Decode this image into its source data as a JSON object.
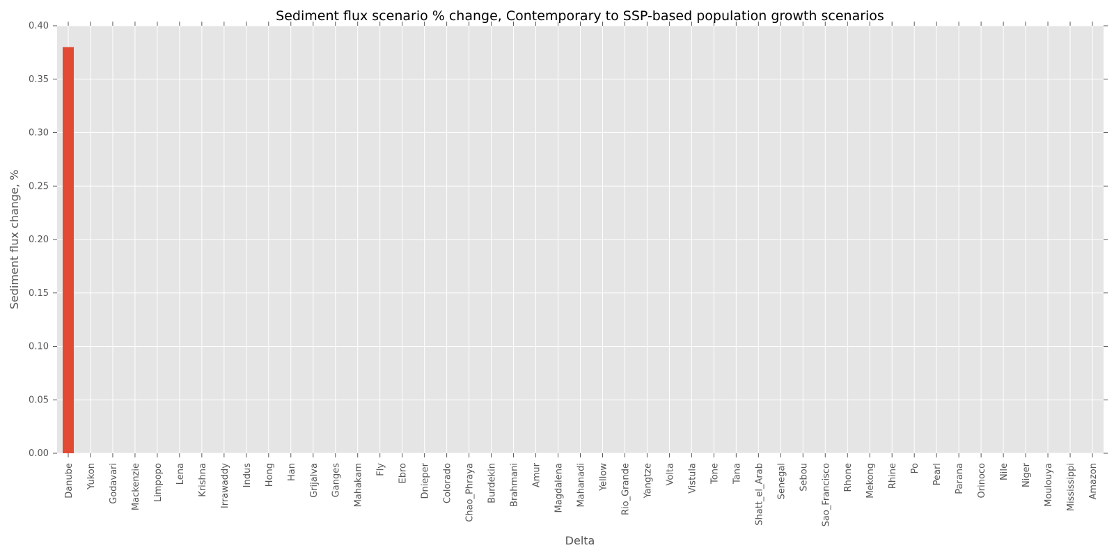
{
  "chart_data": {
    "type": "bar",
    "title": "Sediment flux scenario % change, Contemporary to SSP-based population growth scenarios",
    "xlabel": "Delta",
    "ylabel": "Sediment flux change, %",
    "ylim": [
      0,
      0.4
    ],
    "yticks": [
      0.0,
      0.05,
      0.1,
      0.15,
      0.2,
      0.25,
      0.3,
      0.35,
      0.4
    ],
    "ytick_labels": [
      "0.00",
      "0.05",
      "0.10",
      "0.15",
      "0.20",
      "0.25",
      "0.30",
      "0.35",
      "0.40"
    ],
    "grid": true,
    "categories": [
      "Danube",
      "Yukon",
      "Godavari",
      "Mackenzie",
      "Limpopo",
      "Lena",
      "Krishna",
      "Irrawaddy",
      "Indus",
      "Hong",
      "Han",
      "Grijalva",
      "Ganges",
      "Mahakam",
      "Fly",
      "Ebro",
      "Dnieper",
      "Colorado",
      "Chao_Phraya",
      "Burdekin",
      "Brahmani",
      "Amur",
      "Magdalena",
      "Mahanadi",
      "Yellow",
      "Rio_Grande",
      "Yangtze",
      "Volta",
      "Vistula",
      "Tone",
      "Tana",
      "Shatt_el_Arab",
      "Senegal",
      "Sebou",
      "Sao_Francisco",
      "Rhone",
      "Mekong",
      "Rhine",
      "Po",
      "Pearl",
      "Parana",
      "Orinoco",
      "Nile",
      "Niger",
      "Moulouya",
      "Mississippi",
      "Amazon"
    ],
    "values": [
      0.38,
      0,
      0,
      0,
      0,
      0,
      0,
      0,
      0,
      0,
      0,
      0,
      0,
      0,
      0,
      0,
      0,
      0,
      0,
      0,
      0,
      0,
      0,
      0,
      0,
      0,
      0,
      0,
      0,
      0,
      0,
      0,
      0,
      0,
      0,
      0,
      0,
      0,
      0,
      0,
      0,
      0,
      0,
      0,
      0,
      0,
      0
    ],
    "colors": {
      "bar": "#e24a33",
      "plot_background": "#e5e5e5",
      "grid": "#ffffff",
      "tick_text": "#555555"
    }
  }
}
